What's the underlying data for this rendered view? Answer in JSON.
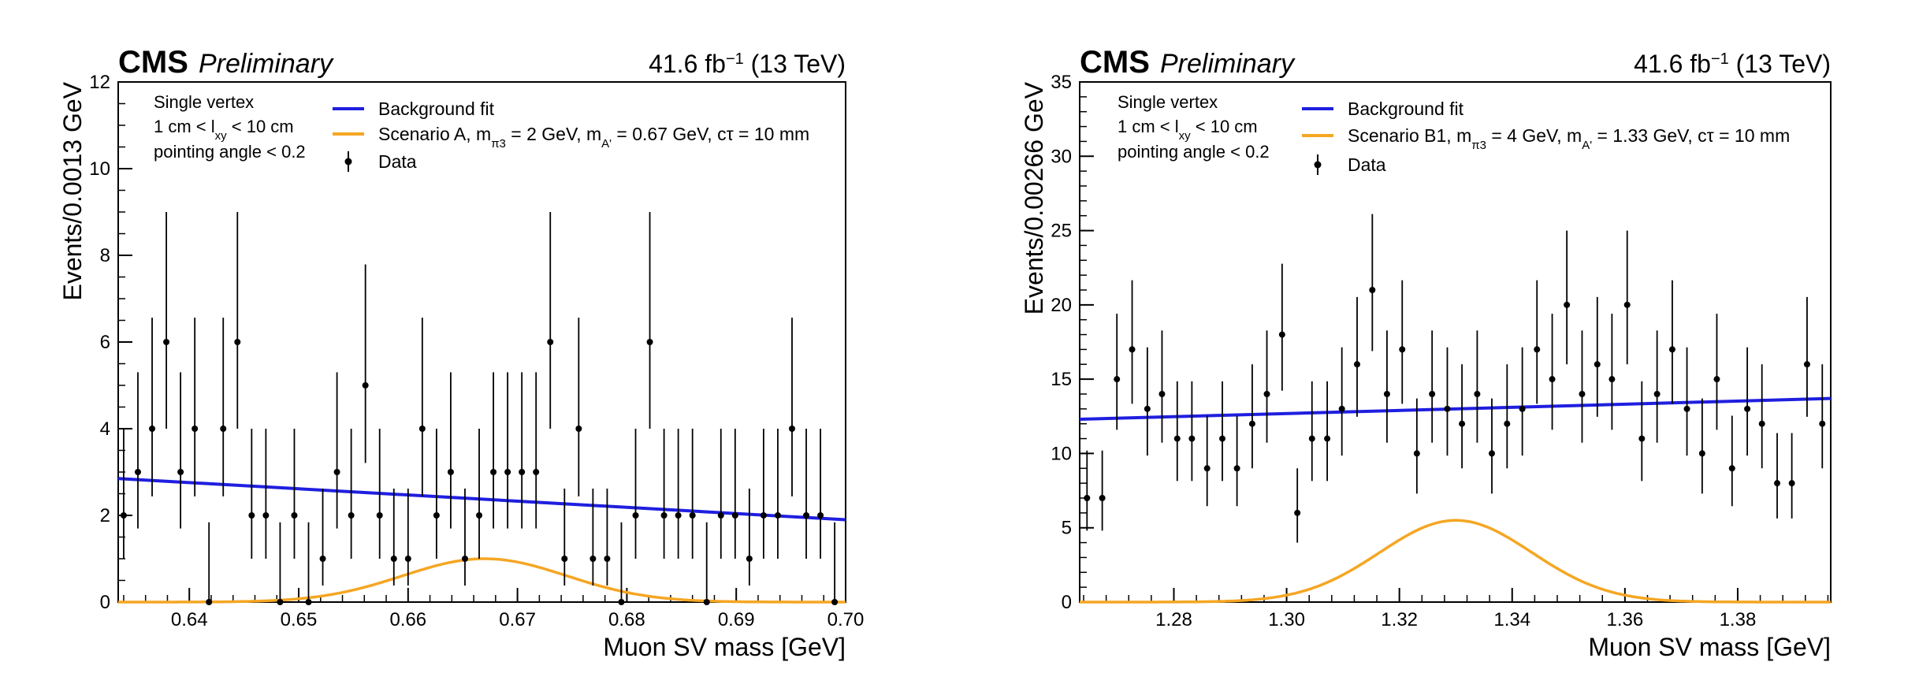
{
  "chart_data": [
    {
      "type": "scatter",
      "experiment": "CMS",
      "status": "Preliminary",
      "luminosity": "41.6 fb",
      "lumi_exponent": "−1",
      "energy": "(13 TeV)",
      "xlabel": "Muon SV mass [GeV]",
      "ylabel": "Events/0.0013 GeV",
      "xlim": [
        0.6335,
        0.7
      ],
      "ylim": [
        0,
        12
      ],
      "xticks": [
        0.64,
        0.65,
        0.66,
        0.67,
        0.68,
        0.69,
        0.7
      ],
      "xtick_labels": [
        "0.64",
        "0.65",
        "0.66",
        "0.67",
        "0.68",
        "0.69",
        "0.70"
      ],
      "yticks": [
        0,
        2,
        4,
        6,
        8,
        10,
        12
      ],
      "ytick_labels": [
        "0",
        "2",
        "4",
        "6",
        "8",
        "10",
        "12"
      ],
      "xminor": 0.002,
      "yminor": 0.5,
      "selection": [
        "Single vertex",
        "1 cm < l",
        "xy",
        " < 10 cm",
        "pointing angle < 0.2"
      ],
      "legend": {
        "background": "Background fit",
        "signal": {
          "prefix": "Scenario A, m",
          "sub1": "π3",
          "mid1": " = 2 GeV, m",
          "sub2": "A'",
          "mid2": " = 0.67 GeV, cτ = 10 mm"
        },
        "data": "Data"
      },
      "background_fit": {
        "x": [
          0.6335,
          0.7
        ],
        "y": [
          2.85,
          1.9
        ],
        "color": "#1f1fe0"
      },
      "signal": {
        "mean": 0.667,
        "sigma": 0.0075,
        "amplitude": 1.0,
        "color": "#f5a623"
      },
      "data": {
        "x": [
          0.634,
          0.6353,
          0.6366,
          0.6379,
          0.6392,
          0.6405,
          0.6418,
          0.6431,
          0.6444,
          0.6457,
          0.647,
          0.6483,
          0.6496,
          0.6509,
          0.6522,
          0.6535,
          0.6548,
          0.6561,
          0.6574,
          0.6587,
          0.66,
          0.6613,
          0.6626,
          0.6639,
          0.6652,
          0.6665,
          0.6678,
          0.6691,
          0.6704,
          0.6717,
          0.673,
          0.6743,
          0.6756,
          0.6769,
          0.6782,
          0.6795,
          0.6808,
          0.6821,
          0.6834,
          0.6847,
          0.686,
          0.6873,
          0.6886,
          0.6899,
          0.6912,
          0.6925,
          0.6938,
          0.6951,
          0.6964,
          0.6977,
          0.699
        ],
        "y": [
          2,
          3,
          4,
          6,
          3,
          4,
          0,
          4,
          6,
          2,
          2,
          0,
          2,
          0,
          1,
          3,
          2,
          5,
          2,
          1,
          1,
          4,
          2,
          3,
          1,
          2,
          3,
          3,
          3,
          3,
          6,
          1,
          4,
          1,
          1,
          0,
          2,
          6,
          2,
          2,
          2,
          0,
          2,
          2,
          1,
          2,
          2,
          4,
          2,
          2,
          0
        ]
      }
    },
    {
      "type": "scatter",
      "experiment": "CMS",
      "status": "Preliminary",
      "luminosity": "41.6 fb",
      "lumi_exponent": "−1",
      "energy": "(13 TeV)",
      "xlabel": "Muon SV mass [GeV]",
      "ylabel": "Events/0.00266 GeV",
      "xlim": [
        1.2633,
        1.3965
      ],
      "ylim": [
        0,
        35
      ],
      "xticks": [
        1.28,
        1.3,
        1.32,
        1.34,
        1.36,
        1.38
      ],
      "xtick_labels": [
        "1.28",
        "1.30",
        "1.32",
        "1.34",
        "1.36",
        "1.38"
      ],
      "yticks": [
        0,
        5,
        10,
        15,
        20,
        25,
        30,
        35
      ],
      "ytick_labels": [
        "0",
        "5",
        "10",
        "15",
        "20",
        "25",
        "30",
        "35"
      ],
      "xminor": 0.004,
      "yminor": 1,
      "selection": [
        "Single vertex",
        "1 cm < l",
        "xy",
        " < 10 cm",
        "pointing angle < 0.2"
      ],
      "legend": {
        "background": "Background fit",
        "signal": {
          "prefix": "Scenario B1, m",
          "sub1": "π3",
          "mid1": " = 4 GeV, m",
          "sub2": "A'",
          "mid2": " = 1.33 GeV, cτ = 10 mm"
        },
        "data": "Data"
      },
      "background_fit": {
        "x": [
          1.2633,
          1.3965
        ],
        "y": [
          12.3,
          13.7
        ],
        "color": "#1f1fe0"
      },
      "signal": {
        "mean": 1.33,
        "sigma": 0.0135,
        "amplitude": 5.5,
        "color": "#f5a623"
      },
      "data": {
        "x": [
          1.2646,
          1.2673,
          1.2699,
          1.2726,
          1.2753,
          1.2779,
          1.2806,
          1.2832,
          1.2859,
          1.2886,
          1.2912,
          1.2939,
          1.2965,
          1.2992,
          1.3019,
          1.3045,
          1.3072,
          1.3098,
          1.3125,
          1.3152,
          1.3178,
          1.3205,
          1.3231,
          1.3258,
          1.3285,
          1.3311,
          1.3338,
          1.3364,
          1.3391,
          1.3418,
          1.3444,
          1.3471,
          1.3497,
          1.3524,
          1.3551,
          1.3577,
          1.3604,
          1.363,
          1.3657,
          1.3684,
          1.371,
          1.3737,
          1.3763,
          1.379,
          1.3817,
          1.3843,
          1.387,
          1.3896,
          1.3923,
          1.395
        ],
        "y": [
          7,
          7,
          15,
          17,
          13,
          14,
          11,
          11,
          9,
          11,
          9,
          12,
          14,
          18,
          6,
          11,
          11,
          13,
          16,
          21,
          14,
          17,
          10,
          14,
          13,
          12,
          14,
          10,
          12,
          13,
          17,
          15,
          20,
          14,
          16,
          15,
          20,
          11,
          14,
          17,
          13,
          10,
          15,
          9,
          13,
          12,
          8,
          8,
          16,
          12
        ]
      }
    }
  ]
}
